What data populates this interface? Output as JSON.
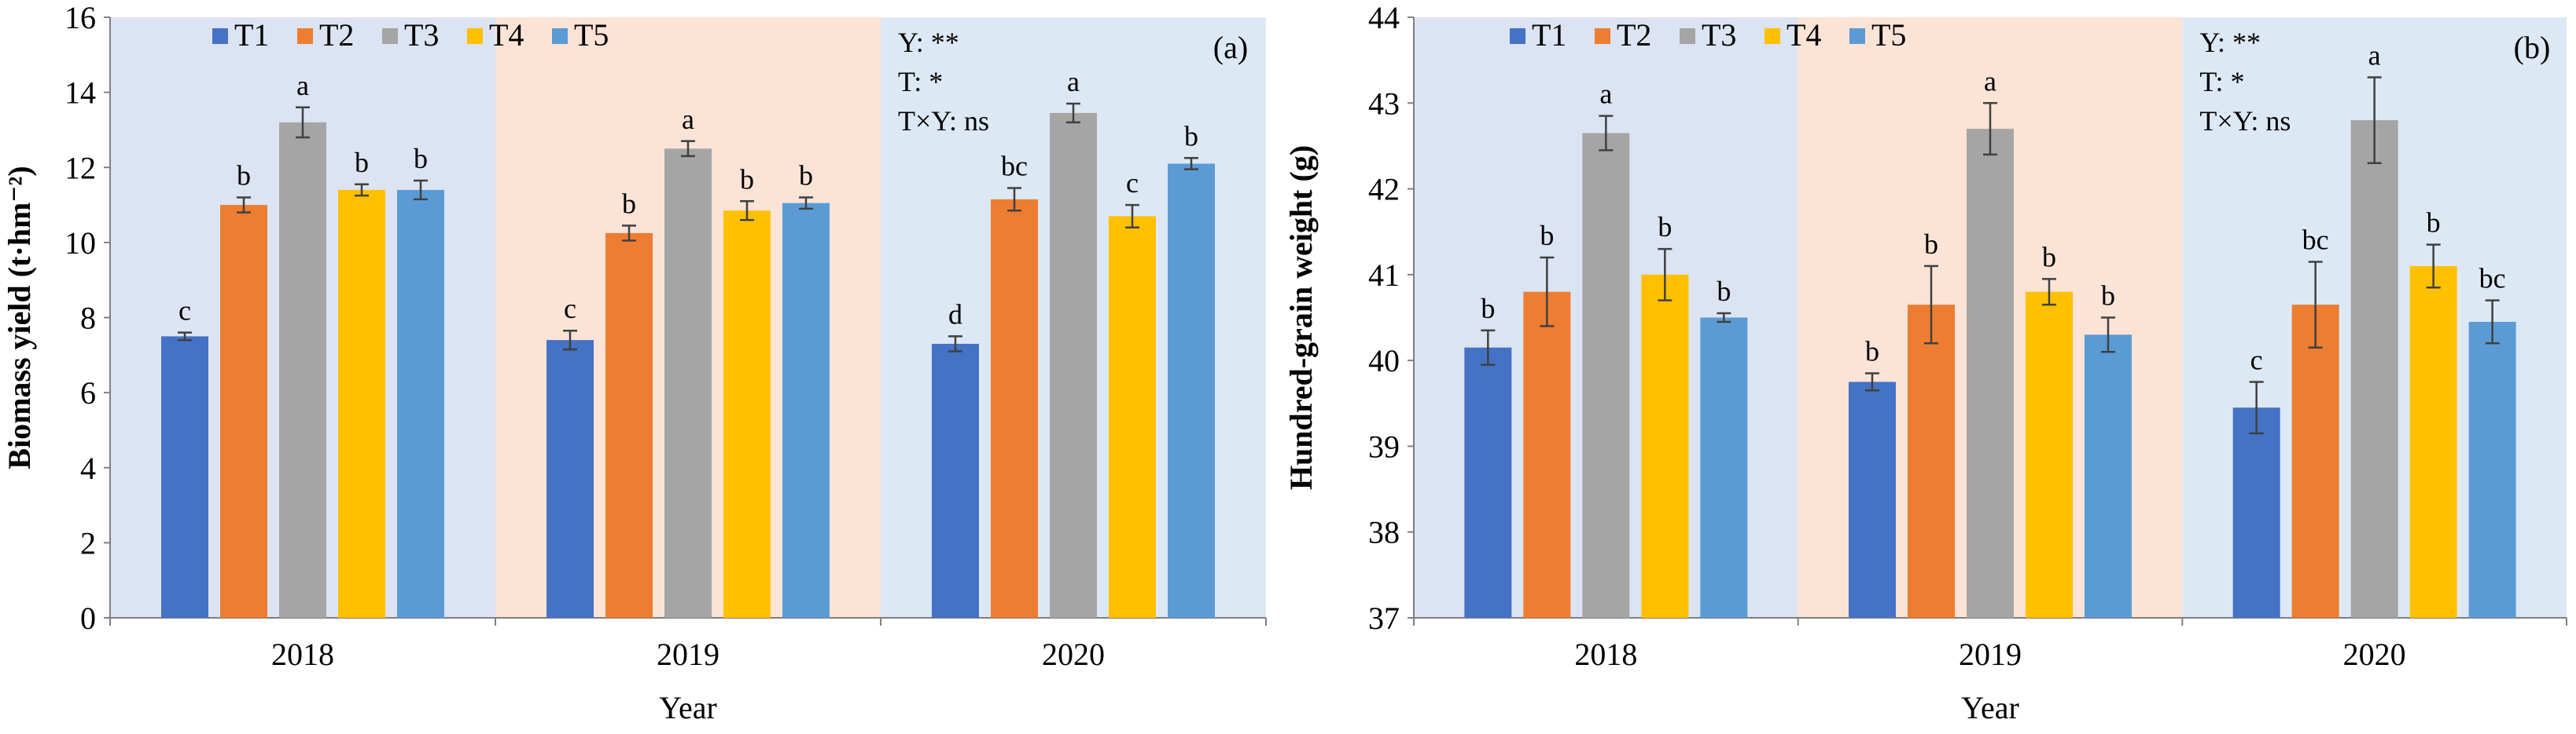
{
  "treatments": [
    "T1",
    "T2",
    "T3",
    "T4",
    "T5"
  ],
  "colors": {
    "T1": "#4472c4",
    "T2": "#ed7d31",
    "T3": "#a5a5a5",
    "T4": "#ffc000",
    "T5": "#5b9bd5",
    "bg_2018": "#dce3f2",
    "bg_2019": "#fbe3d6",
    "bg_2020": "#dde8f5"
  },
  "chart_data": [
    {
      "panel": "(a)",
      "type": "bar",
      "categories": [
        "2018",
        "2019",
        "2020"
      ],
      "xlabel": "Year",
      "ylabel": "Biomass yield  (t·hm⁻²)",
      "ylim": [
        0,
        16
      ],
      "yticks": [
        0,
        2,
        4,
        6,
        8,
        10,
        12,
        14,
        16
      ],
      "legend_position": "top-left",
      "stats": [
        "Y: **",
        "T: *",
        "T×Y: ns"
      ],
      "series": [
        {
          "name": "T1",
          "values": [
            7.5,
            7.4,
            7.3
          ],
          "errors": [
            0.1,
            0.25,
            0.2
          ],
          "letters": [
            "c",
            "c",
            "d"
          ]
        },
        {
          "name": "T2",
          "values": [
            11.0,
            10.25,
            11.15
          ],
          "errors": [
            0.2,
            0.2,
            0.3
          ],
          "letters": [
            "b",
            "b",
            "bc"
          ]
        },
        {
          "name": "T3",
          "values": [
            13.2,
            12.5,
            13.45
          ],
          "errors": [
            0.4,
            0.2,
            0.25
          ],
          "letters": [
            "a",
            "a",
            "a"
          ]
        },
        {
          "name": "T4",
          "values": [
            11.4,
            10.85,
            10.7
          ],
          "errors": [
            0.15,
            0.25,
            0.3
          ],
          "letters": [
            "b",
            "b",
            "c"
          ]
        },
        {
          "name": "T5",
          "values": [
            11.4,
            11.05,
            12.1
          ],
          "errors": [
            0.25,
            0.15,
            0.15
          ],
          "letters": [
            "b",
            "b",
            "b"
          ]
        }
      ]
    },
    {
      "panel": "(b)",
      "type": "bar",
      "categories": [
        "2018",
        "2019",
        "2020"
      ],
      "xlabel": "Year",
      "ylabel": "Hundred-grain weight (g)",
      "ylim": [
        37,
        44
      ],
      "yticks": [
        37,
        38,
        39,
        40,
        41,
        42,
        43,
        44
      ],
      "legend_position": "top-left",
      "stats": [
        "Y: **",
        "T: *",
        "T×Y: ns"
      ],
      "series": [
        {
          "name": "T1",
          "values": [
            40.15,
            39.75,
            39.45
          ],
          "errors": [
            0.2,
            0.1,
            0.3
          ],
          "letters": [
            "b",
            "b",
            "c"
          ]
        },
        {
          "name": "T2",
          "values": [
            40.8,
            40.65,
            40.65
          ],
          "errors": [
            0.4,
            0.45,
            0.5
          ],
          "letters": [
            "b",
            "b",
            "bc"
          ]
        },
        {
          "name": "T3",
          "values": [
            42.65,
            42.7,
            42.8
          ],
          "errors": [
            0.2,
            0.3,
            0.5
          ],
          "letters": [
            "a",
            "a",
            "a"
          ]
        },
        {
          "name": "T4",
          "values": [
            41.0,
            40.8,
            41.1
          ],
          "errors": [
            0.3,
            0.15,
            0.25
          ],
          "letters": [
            "b",
            "b",
            "b"
          ]
        },
        {
          "name": "T5",
          "values": [
            40.5,
            40.3,
            40.45
          ],
          "errors": [
            0.05,
            0.2,
            0.25
          ],
          "letters": [
            "b",
            "b",
            "bc"
          ]
        }
      ]
    }
  ]
}
